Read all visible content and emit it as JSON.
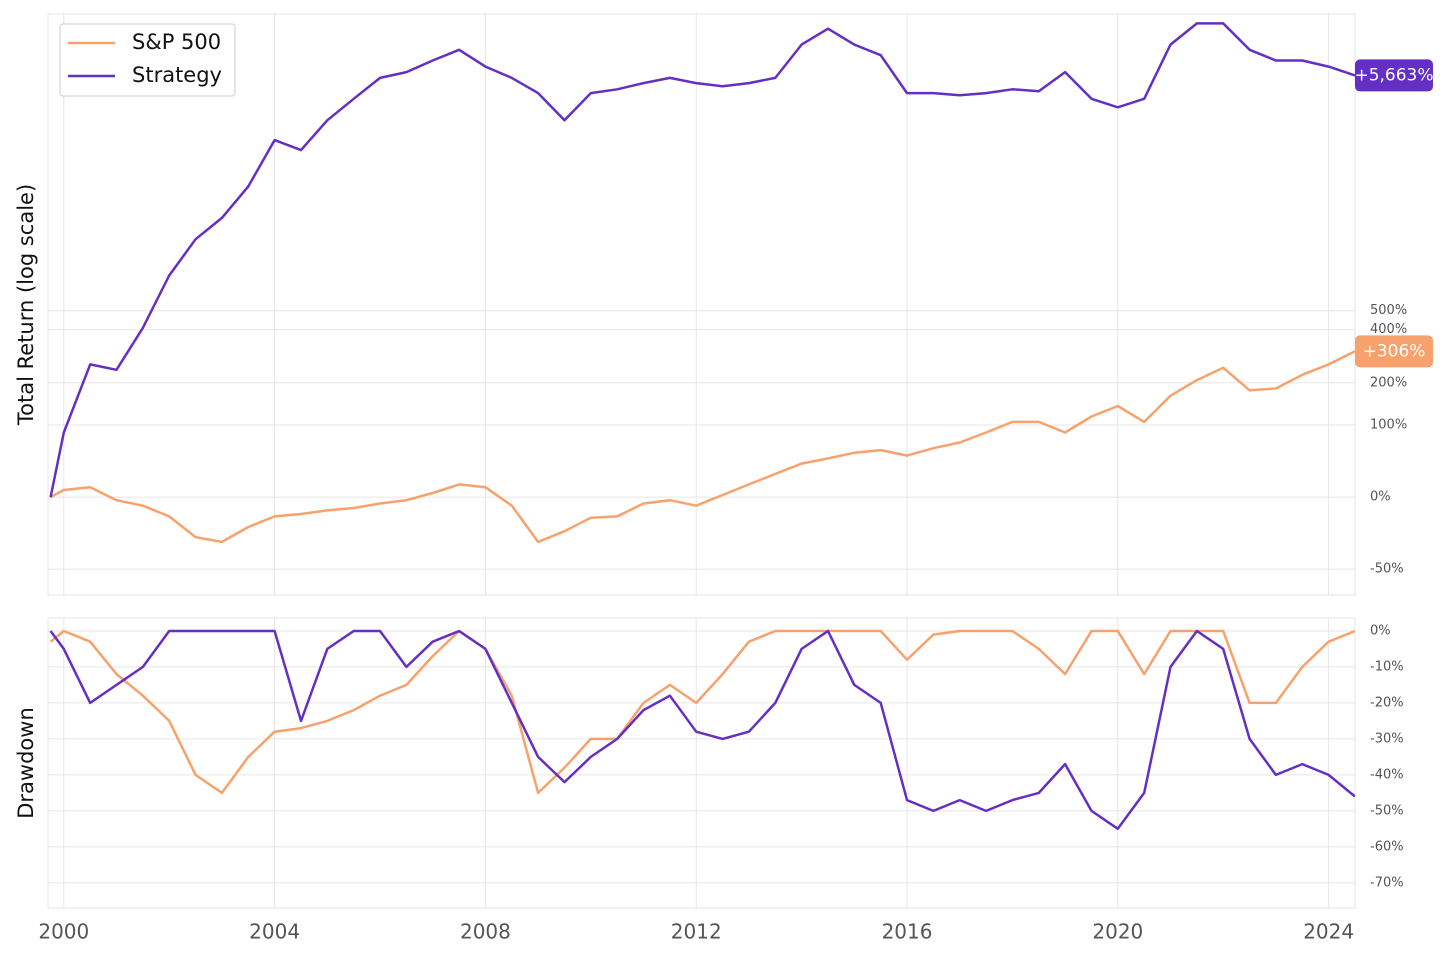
{
  "chart_data": [
    {
      "type": "line",
      "y_label": "Total Return (log scale)",
      "yscale": "log",
      "grid": true,
      "legend": "upper left",
      "xlim": [
        1999.7,
        2024.5
      ],
      "xticks": [
        2000,
        2004,
        2008,
        2012,
        2016,
        2020,
        2024
      ],
      "ylim": [
        -61,
        10300
      ],
      "yticks": [
        {
          "value": -50,
          "label": "-50%"
        },
        {
          "value": 0,
          "label": "0%"
        },
        {
          "value": 100,
          "label": "100%"
        },
        {
          "value": 200,
          "label": "200%"
        },
        {
          "value": 400,
          "label": "400%"
        },
        {
          "value": 500,
          "label": "500%"
        }
      ],
      "x": [
        1999.75,
        2000.0,
        2000.5,
        2001.0,
        2001.5,
        2002.0,
        2002.5,
        2003.0,
        2003.5,
        2004.0,
        2004.5,
        2005.0,
        2005.5,
        2006.0,
        2006.5,
        2007.0,
        2007.5,
        2008.0,
        2008.5,
        2009.0,
        2009.5,
        2010.0,
        2010.5,
        2011.0,
        2011.5,
        2012.0,
        2012.5,
        2013.0,
        2013.5,
        2014.0,
        2014.5,
        2015.0,
        2015.5,
        2016.0,
        2016.5,
        2017.0,
        2017.5,
        2018.0,
        2018.5,
        2019.0,
        2019.5,
        2020.0,
        2020.5,
        2021.0,
        2021.5,
        2022.0,
        2022.5,
        2023.0,
        2023.5,
        2024.0,
        2024.5
      ],
      "series": [
        {
          "name": "S&P 500",
          "color": "#f7a26c",
          "end_label": "+306%",
          "values": [
            0,
            7,
            10,
            -3,
            -8,
            -17,
            -32,
            -35,
            -25,
            -17,
            -15,
            -12,
            -10,
            -6,
            -3,
            4,
            13,
            10,
            -8,
            -35,
            -28,
            -18,
            -17,
            -6,
            -3,
            -8,
            2,
            13,
            25,
            38,
            45,
            53,
            57,
            49,
            60,
            69,
            86,
            106,
            106,
            86,
            117,
            140,
            106,
            165,
            208,
            247,
            179,
            184,
            224,
            258,
            306
          ]
        },
        {
          "name": "Strategy",
          "color": "#6430c4",
          "end_label": "+5,663%",
          "values": [
            0,
            86,
            258,
            240,
            409,
            742,
            1093,
            1364,
            1883,
            2993,
            2711,
            3643,
            4504,
            5524,
            5850,
            6550,
            7270,
            6170,
            5524,
            4760,
            3643,
            4760,
            4940,
            5250,
            5524,
            5250,
            5090,
            5250,
            5524,
            7650,
            8930,
            7650,
            6900,
            4760,
            4760,
            4660,
            4760,
            4940,
            4850,
            5850,
            4504,
            4140,
            4504,
            7650,
            9400,
            9400,
            7270,
            6550,
            6550,
            6170,
            5663
          ]
        }
      ]
    },
    {
      "type": "line",
      "y_label": "Drawdown",
      "grid": true,
      "xlim": [
        1999.7,
        2024.5
      ],
      "xticks": [
        2000,
        2004,
        2008,
        2012,
        2016,
        2020,
        2024
      ],
      "ylim": [
        -77,
        3.6
      ],
      "yticks": [
        {
          "value": 0,
          "label": "0%"
        },
        {
          "value": -10,
          "label": "-10%"
        },
        {
          "value": -20,
          "label": "-20%"
        },
        {
          "value": -30,
          "label": "-30%"
        },
        {
          "value": -40,
          "label": "-40%"
        },
        {
          "value": -50,
          "label": "-50%"
        },
        {
          "value": -60,
          "label": "-60%"
        },
        {
          "value": -70,
          "label": "-70%"
        }
      ],
      "x": [
        1999.75,
        2000.0,
        2000.5,
        2001.0,
        2001.5,
        2002.0,
        2002.5,
        2003.0,
        2003.5,
        2004.0,
        2004.5,
        2005.0,
        2005.5,
        2006.0,
        2006.5,
        2007.0,
        2007.5,
        2008.0,
        2008.5,
        2009.0,
        2009.5,
        2010.0,
        2010.5,
        2011.0,
        2011.5,
        2012.0,
        2012.5,
        2013.0,
        2013.5,
        2014.0,
        2014.5,
        2015.0,
        2015.5,
        2016.0,
        2016.5,
        2017.0,
        2017.5,
        2018.0,
        2018.5,
        2019.0,
        2019.5,
        2020.0,
        2020.5,
        2021.0,
        2021.5,
        2022.0,
        2022.5,
        2023.0,
        2023.5,
        2024.0,
        2024.5
      ],
      "series": [
        {
          "name": "S&P 500",
          "color": "#f7a26c",
          "values": [
            -3,
            0,
            -3,
            -12,
            -18,
            -25,
            -40,
            -45,
            -35,
            -28,
            -27,
            -25,
            -22,
            -18,
            -15,
            -7,
            0,
            -5,
            -18,
            -45,
            -38,
            -30,
            -30,
            -20,
            -15,
            -20,
            -12,
            -3,
            0,
            0,
            0,
            0,
            0,
            -8,
            -1,
            0,
            0,
            0,
            -5,
            -12,
            0,
            0,
            -12,
            0,
            0,
            0,
            -20,
            -20,
            -10,
            -3,
            0
          ]
        },
        {
          "name": "Strategy",
          "color": "#6430c4",
          "values": [
            0,
            -5,
            -20,
            -15,
            -10,
            0,
            0,
            0,
            0,
            0,
            -25,
            -5,
            0,
            0,
            -10,
            -3,
            0,
            -5,
            -20,
            -35,
            -42,
            -35,
            -30,
            -22,
            -18,
            -28,
            -30,
            -28,
            -20,
            -5,
            0,
            -15,
            -20,
            -47,
            -50,
            -47,
            -50,
            -47,
            -45,
            -37,
            -50,
            -55,
            -45,
            -10,
            0,
            -5,
            -30,
            -40,
            -37,
            -40,
            -46
          ]
        }
      ]
    }
  ]
}
